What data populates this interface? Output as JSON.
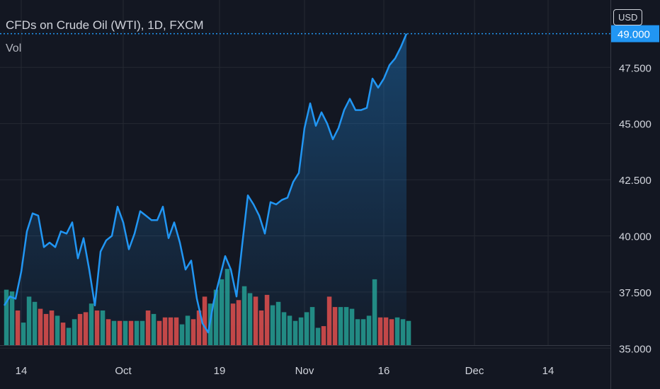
{
  "header": {
    "title": "CFDs on Crude Oil (WTI), 1D, FXCM",
    "volume_label": "Vol",
    "currency": "USD"
  },
  "colors": {
    "background": "#131722",
    "grid": "#242832",
    "line": "#2196f3",
    "volume_up": "#26a69a",
    "volume_down": "#ef5350",
    "text": "#d1d4dc"
  },
  "chart_data": {
    "type": "area",
    "title": "CFDs on Crude Oil (WTI), 1D, FXCM",
    "ylim": [
      34.6,
      50.5
    ],
    "y_ticks": [
      "35.000",
      "37.500",
      "40.000",
      "42.500",
      "45.000",
      "47.500"
    ],
    "x_ticks": [
      {
        "label": "14",
        "index": 3
      },
      {
        "label": "Oct",
        "index": 21
      },
      {
        "label": "19",
        "index": 38
      },
      {
        "label": "Nov",
        "index": 53
      },
      {
        "label": "16",
        "index": 67
      },
      {
        "label": "Dec",
        "index": 83
      },
      {
        "label": "14",
        "index": 96
      }
    ],
    "grid": true,
    "series": [
      {
        "type": "line",
        "values": [
          36.9,
          37.3,
          37.2,
          38.4,
          40.2,
          41.0,
          40.9,
          39.5,
          39.7,
          39.5,
          40.2,
          40.1,
          40.6,
          39.0,
          39.9,
          38.5,
          36.9,
          39.3,
          39.8,
          40.0,
          41.3,
          40.6,
          39.4,
          40.1,
          41.1,
          40.9,
          40.7,
          40.7,
          41.3,
          39.9,
          40.6,
          39.7,
          38.5,
          38.9,
          37.2,
          36.1,
          35.7,
          37.1,
          38.1,
          39.1,
          38.5,
          37.3,
          39.6,
          41.8,
          41.4,
          40.9,
          40.1,
          41.5,
          41.4,
          41.6,
          41.7,
          42.4,
          42.8,
          44.8,
          45.9,
          44.9,
          45.5,
          45.0,
          44.3,
          44.8,
          45.6,
          46.1,
          45.6,
          45.6,
          45.7,
          47.0,
          46.6,
          47.0,
          47.6,
          47.9,
          48.4,
          49.0
        ]
      }
    ],
    "volume": {
      "up": [
        true,
        true,
        false,
        true,
        true,
        true,
        false,
        false,
        false,
        true,
        false,
        true,
        true,
        false,
        false,
        true,
        false,
        true,
        false,
        true,
        false,
        true,
        false,
        true,
        true,
        false,
        true,
        false,
        false,
        false,
        false,
        true,
        true,
        false,
        false,
        false,
        true,
        true,
        true,
        true,
        false,
        false,
        true,
        true,
        false,
        false,
        false,
        true,
        true,
        true,
        true,
        true,
        true,
        true,
        true,
        true,
        false,
        false,
        false,
        true,
        true,
        true,
        true,
        true,
        true,
        true,
        false,
        false,
        false,
        true,
        true,
        true
      ],
      "values": [
        32,
        31,
        20,
        13,
        28,
        25,
        21,
        18,
        20,
        17,
        13,
        10,
        15,
        18,
        19,
        24,
        20,
        20,
        15,
        14,
        14,
        14,
        14,
        14,
        14,
        20,
        18,
        14,
        16,
        16,
        16,
        12,
        17,
        15,
        20,
        28,
        24,
        32,
        38,
        44,
        24,
        26,
        34,
        30,
        28,
        20,
        29,
        23,
        25,
        19,
        17,
        14,
        16,
        19,
        22,
        10,
        11,
        28,
        22,
        22,
        22,
        21,
        15,
        15,
        17,
        38,
        16,
        16,
        15,
        16,
        15,
        14
      ]
    }
  }
}
